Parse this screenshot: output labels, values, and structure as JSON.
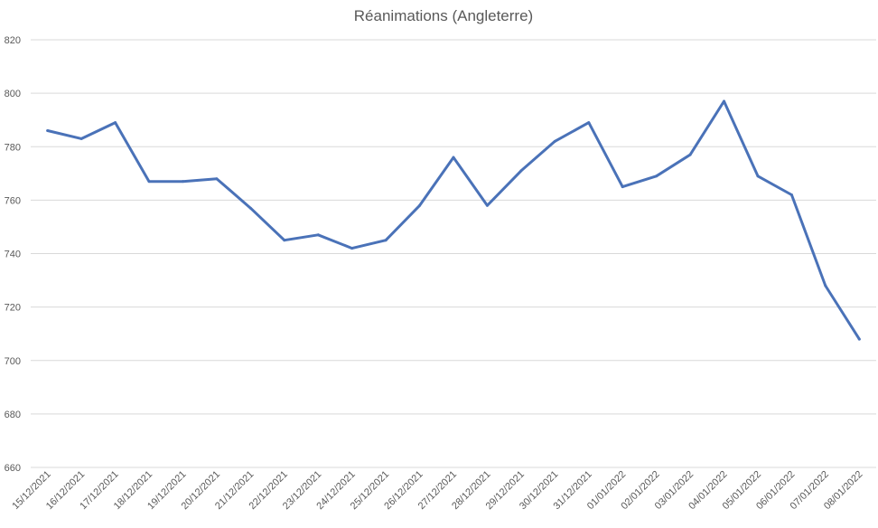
{
  "chart_data": {
    "type": "line",
    "title": "Réanimations (Angleterre)",
    "xlabel": "",
    "ylabel": "",
    "ylim": [
      660,
      820
    ],
    "yticks": [
      660,
      680,
      700,
      720,
      740,
      760,
      780,
      800,
      820
    ],
    "grid": true,
    "legend": "none",
    "colors": {
      "line": "#4a72b8",
      "grid": "#d9d9d9",
      "text": "#595959"
    },
    "categories": [
      "15/12/2021",
      "16/12/2021",
      "17/12/2021",
      "18/12/2021",
      "19/12/2021",
      "20/12/2021",
      "21/12/2021",
      "22/12/2021",
      "23/12/2021",
      "24/12/2021",
      "25/12/2021",
      "26/12/2021",
      "27/12/2021",
      "28/12/2021",
      "29/12/2021",
      "30/12/2021",
      "31/12/2021",
      "01/01/2022",
      "02/01/2022",
      "03/01/2022",
      "04/01/2022",
      "05/01/2022",
      "06/01/2022",
      "07/01/2022",
      "08/01/2022"
    ],
    "series": [
      {
        "values": [
          786,
          783,
          789,
          767,
          767,
          768,
          757,
          745,
          747,
          742,
          745,
          758,
          776,
          758,
          771,
          782,
          789,
          765,
          769,
          777,
          797,
          769,
          762,
          728,
          708
        ]
      }
    ]
  }
}
